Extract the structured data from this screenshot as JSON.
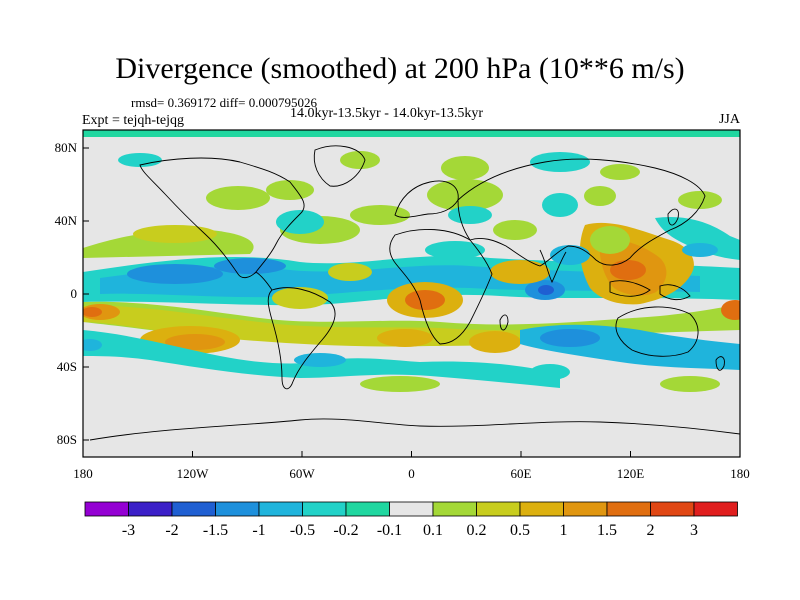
{
  "title": "Divergence (smoothed) at 200 hPa (10**6 m/s)",
  "stats": "rmsd= 0.369172 diff= 0.000795026",
  "experiment": "Expt = tejqh-tejqg",
  "period": "14.0kyr-13.5kyr - 14.0kyr-13.5kyr",
  "season": "JJA",
  "colorbar": {
    "colors": [
      "#9400d3",
      "#3c20c8",
      "#1f5fd2",
      "#1e90dc",
      "#1fb4dc",
      "#22d2c8",
      "#20d7a0",
      "#e6e6e6",
      "#a4d837",
      "#c8cd1e",
      "#dcb00f",
      "#e09610",
      "#e06e10",
      "#e04714",
      "#e01e1e"
    ],
    "labels": [
      "-3",
      "-2",
      "-1.5",
      "-1",
      "-0.5",
      "-0.2",
      "-0.1",
      "0.1",
      "0.2",
      "0.5",
      "1",
      "1.5",
      "2",
      "3"
    ]
  },
  "axes": {
    "x_ticks": [
      "180",
      "120W",
      "60W",
      "0",
      "60E",
      "120E",
      "180"
    ],
    "y_ticks": [
      "80N",
      "40N",
      "0",
      "40S",
      "80S"
    ]
  }
}
